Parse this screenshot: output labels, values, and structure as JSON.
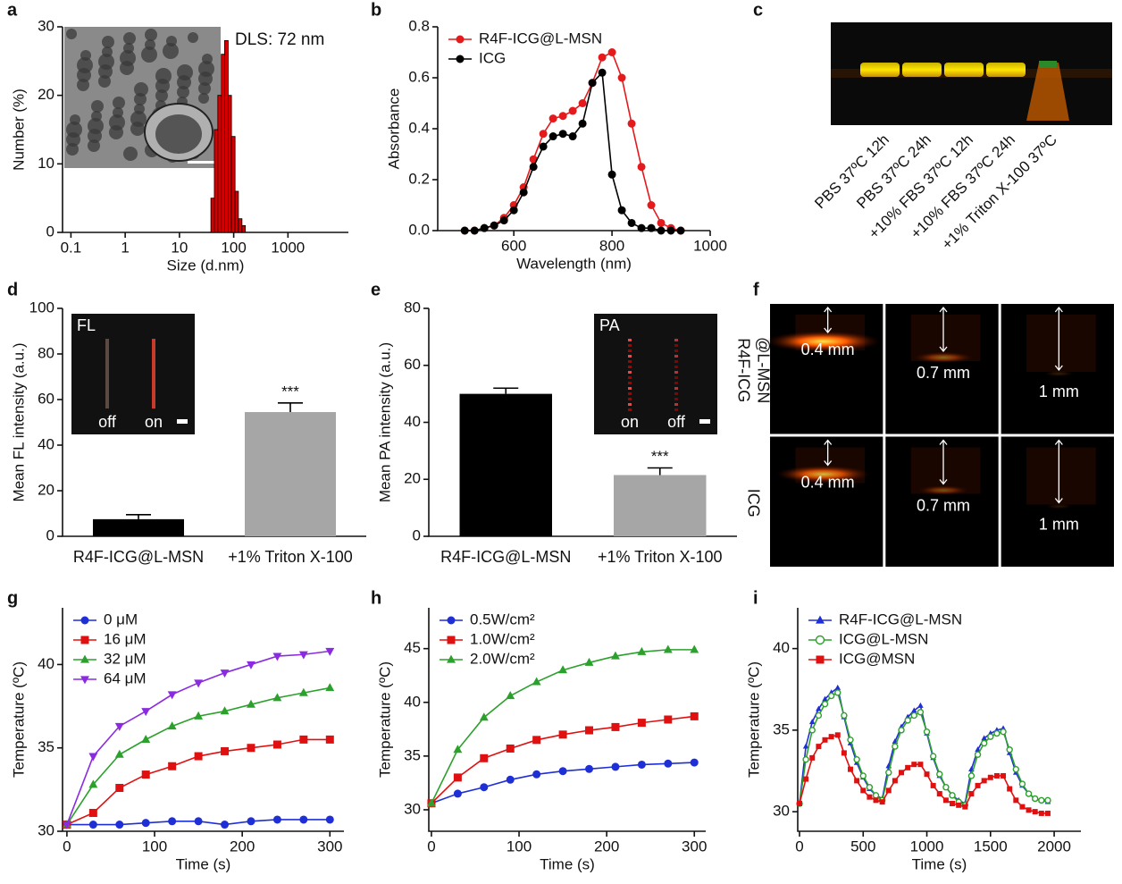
{
  "chart_data": [
    {
      "panel": "a",
      "type": "histogram",
      "xscale": "log",
      "xlim": [
        0.07,
        13000
      ],
      "xticks": [
        0.1,
        1,
        10,
        100,
        1000
      ],
      "ylim": [
        0,
        30
      ],
      "yticks": [
        0,
        10,
        20,
        30
      ],
      "xlabel": "Size (d.nm)",
      "ylabel": "Number (%)",
      "annotation": "DLS: 72 nm",
      "color": "#d40000",
      "bins": [
        38,
        44,
        51,
        59,
        68,
        79,
        91,
        106,
        122,
        142,
        164
      ],
      "values": [
        5,
        15,
        20,
        26,
        28,
        20,
        14,
        6,
        2,
        1
      ]
    },
    {
      "panel": "b",
      "type": "line",
      "xlim": [
        445,
        1000
      ],
      "xticks": [
        600,
        800,
        1000
      ],
      "ylim": [
        0,
        0.8
      ],
      "yticks": [
        {
          "value": 0,
          "label": "0.0"
        },
        0.2,
        0.4,
        0.6,
        0.8
      ],
      "xlabel": "Wavelength (nm)",
      "ylabel": "Absorbance",
      "legend": "upper left",
      "x": [
        500,
        520,
        540,
        560,
        580,
        600,
        620,
        640,
        660,
        680,
        700,
        720,
        740,
        760,
        780,
        800,
        820,
        840,
        860,
        880,
        900,
        920,
        940
      ],
      "series": [
        {
          "name": "R4F-ICG@L-MSN",
          "color": "#e41a1c",
          "marker": "circle",
          "values": [
            0,
            0,
            0.01,
            0.02,
            0.05,
            0.1,
            0.17,
            0.28,
            0.38,
            0.44,
            0.45,
            0.47,
            0.5,
            0.58,
            0.68,
            0.7,
            0.6,
            0.42,
            0.25,
            0.1,
            0.03,
            0.01,
            0
          ]
        },
        {
          "name": "ICG",
          "color": "#000000",
          "marker": "circle",
          "values": [
            0,
            0,
            0.01,
            0.02,
            0.04,
            0.08,
            0.15,
            0.25,
            0.33,
            0.37,
            0.38,
            0.37,
            0.42,
            0.58,
            0.62,
            0.22,
            0.08,
            0.03,
            0.01,
            0.01,
            0,
            0,
            0
          ]
        }
      ]
    },
    {
      "panel": "c",
      "type": "gel",
      "lanes": [
        "PBS 37ºC 12h",
        "PBS 37ºC 24h",
        "+10% FBS 37ºC 12h",
        "+10% FBS 37ºC 24h",
        "+1% Triton X-100 37ºC"
      ]
    },
    {
      "panel": "d",
      "type": "bar",
      "ylim": [
        0,
        100
      ],
      "yticks": [
        0,
        20,
        40,
        60,
        80,
        100
      ],
      "ylabel": "Mean FL intensity (a.u.)",
      "categories": [
        "R4F-ICG@L-MSN",
        "+1% Triton X-100"
      ],
      "values": [
        7.5,
        54.5
      ],
      "errors": [
        2,
        4
      ],
      "colors": [
        "#000000",
        "#a6a6a6"
      ],
      "annotation": "***",
      "inset": {
        "label": "FL",
        "lanes": [
          "off",
          "on"
        ]
      }
    },
    {
      "panel": "e",
      "type": "bar",
      "ylim": [
        0,
        80
      ],
      "yticks": [
        0,
        20,
        40,
        60,
        80
      ],
      "ylabel": "Mean PA intensity (a.u.)",
      "categories": [
        "R4F-ICG@L-MSN",
        "+1% Triton X-100"
      ],
      "values": [
        50,
        21.5
      ],
      "errors": [
        2,
        2.5
      ],
      "colors": [
        "#000000",
        "#a6a6a6"
      ],
      "annotation": "***",
      "inset": {
        "label": "PA",
        "lanes": [
          "on",
          "off"
        ]
      }
    },
    {
      "panel": "f",
      "type": "imagegrid",
      "row_labels": [
        [
          "R4F-ICG",
          "@L-MSN"
        ],
        [
          "ICG"
        ]
      ],
      "depths": [
        "0.4 mm",
        "0.7 mm",
        "1 mm"
      ]
    },
    {
      "panel": "g",
      "type": "line",
      "xlim": [
        -5,
        316
      ],
      "xticks": [
        0,
        100,
        200,
        300
      ],
      "ylim": [
        30,
        43.4
      ],
      "yticks": [
        30,
        35,
        40
      ],
      "xlabel": "Time (s)",
      "ylabel": "Temperature (ºC)",
      "legend": "upper left",
      "x": [
        0,
        30,
        60,
        90,
        120,
        150,
        180,
        210,
        240,
        270,
        300
      ],
      "series": [
        {
          "name": "0 μM",
          "color": "#1f2fd6",
          "marker": "circle",
          "values": [
            30.4,
            30.4,
            30.4,
            30.5,
            30.6,
            30.6,
            30.4,
            30.6,
            30.7,
            30.7,
            30.7
          ]
        },
        {
          "name": "16 μM",
          "color": "#e01010",
          "marker": "square",
          "values": [
            30.4,
            31.1,
            32.6,
            33.4,
            33.9,
            34.5,
            34.8,
            35.0,
            35.2,
            35.5,
            35.5
          ]
        },
        {
          "name": "32 μM",
          "color": "#2ca02c",
          "marker": "triangle",
          "values": [
            30.4,
            32.8,
            34.6,
            35.5,
            36.3,
            36.9,
            37.2,
            37.6,
            38.0,
            38.3,
            38.6
          ]
        },
        {
          "name": "64 μM",
          "color": "#8a2be2",
          "marker": "triangle-down",
          "values": [
            30.4,
            34.5,
            36.3,
            37.2,
            38.2,
            38.9,
            39.5,
            40.0,
            40.5,
            40.6,
            40.8
          ]
        }
      ]
    },
    {
      "panel": "h",
      "type": "line",
      "xlim": [
        -3,
        313
      ],
      "xticks": [
        0,
        100,
        200,
        300
      ],
      "ylim": [
        28,
        48.8
      ],
      "yticks": [
        30,
        35,
        40,
        45
      ],
      "xlabel": "Time (s)",
      "ylabel": "Temperature (ºC)",
      "legend": "upper left",
      "x": [
        0,
        30,
        60,
        90,
        120,
        150,
        180,
        210,
        240,
        270,
        300
      ],
      "series": [
        {
          "name": "0.5W/cm²",
          "color": "#1f2fd6",
          "marker": "circle",
          "values": [
            30.6,
            31.5,
            32.1,
            32.8,
            33.3,
            33.6,
            33.8,
            34.0,
            34.2,
            34.3,
            34.4
          ]
        },
        {
          "name": "1.0W/cm²",
          "color": "#e01010",
          "marker": "square",
          "values": [
            30.6,
            33.0,
            34.8,
            35.7,
            36.5,
            37.0,
            37.4,
            37.7,
            38.1,
            38.4,
            38.7
          ]
        },
        {
          "name": "2.0W/cm²",
          "color": "#2ca02c",
          "marker": "triangle",
          "values": [
            30.6,
            35.6,
            38.6,
            40.6,
            41.9,
            43.0,
            43.7,
            44.3,
            44.7,
            44.9,
            44.9
          ]
        }
      ]
    },
    {
      "panel": "i",
      "type": "line",
      "xlim": [
        -14,
        2210
      ],
      "xticks": [
        0,
        500,
        1000,
        1500,
        2000
      ],
      "ylim": [
        28.8,
        42.5
      ],
      "yticks": [
        30,
        35,
        40
      ],
      "xlabel": "Time (s)",
      "ylabel": "Temperature (ºC)",
      "legend": "upper left",
      "small_markers": true,
      "x": [
        0,
        50,
        100,
        150,
        200,
        250,
        300,
        350,
        400,
        450,
        500,
        550,
        600,
        650,
        700,
        750,
        800,
        850,
        900,
        950,
        1000,
        1050,
        1100,
        1150,
        1200,
        1250,
        1300,
        1350,
        1400,
        1450,
        1500,
        1550,
        1600,
        1650,
        1700,
        1750,
        1800,
        1850,
        1900,
        1950
      ],
      "series": [
        {
          "name": "R4F-ICG@L-MSN",
          "color": "#1f2fd6",
          "marker": "triangle",
          "values": [
            30.5,
            34.0,
            35.5,
            36.3,
            36.9,
            37.3,
            37.6,
            35.8,
            34.2,
            33.0,
            32.1,
            31.4,
            31.0,
            30.8,
            32.8,
            34.3,
            35.2,
            35.8,
            36.2,
            36.5,
            34.8,
            33.3,
            32.2,
            31.5,
            31.0,
            30.7,
            30.5,
            32.6,
            33.8,
            34.5,
            34.8,
            35.0,
            35.1,
            33.6,
            32.4,
            31.6,
            31.1,
            30.8,
            30.7,
            30.6
          ]
        },
        {
          "name": "ICG@L-MSN",
          "color": "#2ca02c",
          "marker": "circle-open",
          "values": [
            30.5,
            33.2,
            35.0,
            35.9,
            36.6,
            37.1,
            37.3,
            35.9,
            34.4,
            33.2,
            32.2,
            31.5,
            31.0,
            30.7,
            32.4,
            34.0,
            35.0,
            35.6,
            35.9,
            36.1,
            34.9,
            33.4,
            32.3,
            31.5,
            31.0,
            30.6,
            30.4,
            32.2,
            33.5,
            34.2,
            34.6,
            34.8,
            34.9,
            33.8,
            32.6,
            31.7,
            31.1,
            30.8,
            30.7,
            30.7
          ]
        },
        {
          "name": "ICG@MSN",
          "color": "#e01010",
          "marker": "square",
          "values": [
            30.5,
            32.0,
            33.3,
            34.0,
            34.4,
            34.6,
            34.7,
            33.6,
            32.6,
            31.9,
            31.3,
            30.9,
            30.7,
            30.6,
            31.3,
            31.9,
            32.4,
            32.7,
            32.9,
            32.9,
            32.3,
            31.6,
            31.1,
            30.7,
            30.5,
            30.4,
            30.3,
            31.1,
            31.6,
            31.9,
            32.1,
            32.2,
            32.2,
            31.4,
            30.7,
            30.3,
            30.1,
            30.0,
            29.9,
            29.9
          ]
        }
      ]
    }
  ]
}
